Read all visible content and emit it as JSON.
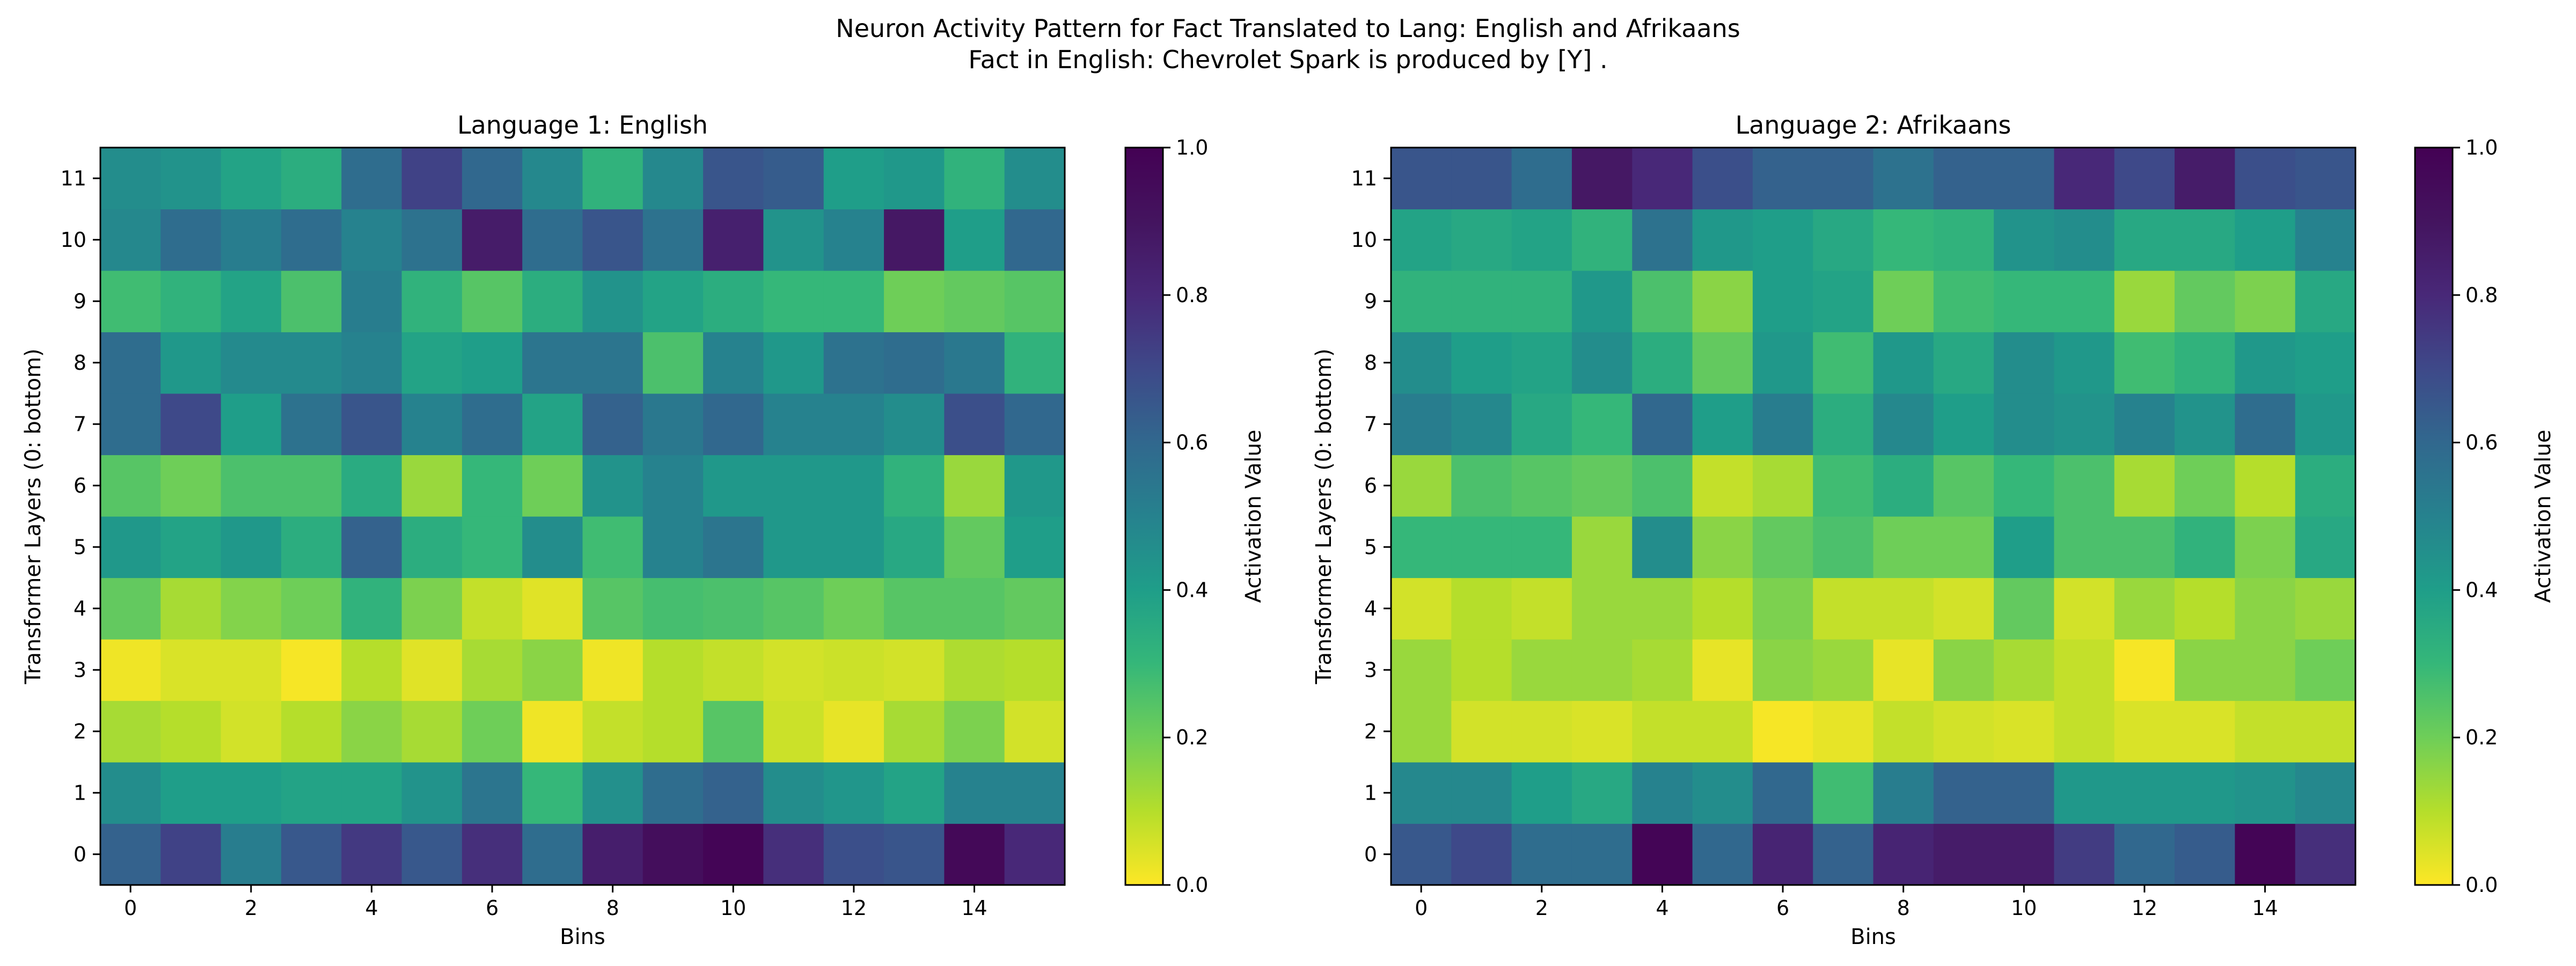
{
  "figure": {
    "suptitle_line1": "Neuron Activity Pattern for Fact Translated to Lang: English and Afrikaans",
    "suptitle_line2": "Fact in English: Chevrolet Spark is produced by [Y] ."
  },
  "chart_data": [
    {
      "type": "heatmap",
      "title": "Language 1: English",
      "xlabel": "Bins",
      "ylabel": "Transformer Layers (0: bottom)",
      "x_ticks": [
        "0",
        "2",
        "4",
        "6",
        "8",
        "10",
        "12",
        "14"
      ],
      "y_ticks": [
        "0",
        "1",
        "2",
        "3",
        "4",
        "5",
        "6",
        "7",
        "8",
        "9",
        "10",
        "11"
      ],
      "colorbar": {
        "label": "Activation Value",
        "min": 0.0,
        "max": 1.0,
        "ticks": [
          "0.0",
          "0.2",
          "0.4",
          "0.6",
          "0.8",
          "1.0"
        ],
        "colormap": "viridis_r"
      },
      "n_bins": 16,
      "n_layers": 12,
      "values_by_layer": [
        [
          0.62,
          0.72,
          0.52,
          0.65,
          0.75,
          0.65,
          0.78,
          0.58,
          0.85,
          0.93,
          0.98,
          0.78,
          0.68,
          0.66,
          0.96,
          0.8
        ],
        [
          0.46,
          0.4,
          0.4,
          0.38,
          0.38,
          0.44,
          0.55,
          0.3,
          0.45,
          0.58,
          0.62,
          0.46,
          0.43,
          0.38,
          0.5,
          0.5
        ],
        [
          0.12,
          0.1,
          0.06,
          0.1,
          0.16,
          0.12,
          0.2,
          0.02,
          0.08,
          0.1,
          0.24,
          0.07,
          0.03,
          0.12,
          0.18,
          0.06
        ],
        [
          0.02,
          0.05,
          0.05,
          0.01,
          0.1,
          0.04,
          0.12,
          0.16,
          0.02,
          0.1,
          0.08,
          0.06,
          0.07,
          0.06,
          0.11,
          0.1
        ],
        [
          0.22,
          0.12,
          0.17,
          0.2,
          0.32,
          0.18,
          0.08,
          0.04,
          0.24,
          0.27,
          0.26,
          0.24,
          0.2,
          0.24,
          0.24,
          0.22
        ],
        [
          0.42,
          0.38,
          0.42,
          0.34,
          0.62,
          0.34,
          0.3,
          0.46,
          0.28,
          0.5,
          0.55,
          0.42,
          0.42,
          0.36,
          0.22,
          0.4
        ],
        [
          0.24,
          0.2,
          0.26,
          0.26,
          0.35,
          0.14,
          0.3,
          0.2,
          0.44,
          0.5,
          0.42,
          0.42,
          0.42,
          0.32,
          0.14,
          0.42
        ],
        [
          0.58,
          0.7,
          0.4,
          0.56,
          0.66,
          0.5,
          0.58,
          0.38,
          0.62,
          0.54,
          0.6,
          0.5,
          0.5,
          0.46,
          0.68,
          0.6
        ],
        [
          0.58,
          0.42,
          0.47,
          0.47,
          0.5,
          0.38,
          0.4,
          0.55,
          0.55,
          0.26,
          0.5,
          0.42,
          0.56,
          0.58,
          0.54,
          0.32
        ],
        [
          0.28,
          0.32,
          0.38,
          0.26,
          0.52,
          0.32,
          0.24,
          0.34,
          0.44,
          0.38,
          0.34,
          0.3,
          0.3,
          0.2,
          0.22,
          0.24
        ],
        [
          0.48,
          0.58,
          0.52,
          0.58,
          0.5,
          0.56,
          0.86,
          0.58,
          0.66,
          0.56,
          0.84,
          0.44,
          0.5,
          0.88,
          0.4,
          0.6
        ],
        [
          0.46,
          0.44,
          0.38,
          0.34,
          0.58,
          0.72,
          0.6,
          0.48,
          0.32,
          0.48,
          0.66,
          0.64,
          0.4,
          0.42,
          0.32,
          0.46
        ]
      ]
    },
    {
      "type": "heatmap",
      "title": "Language 2: Afrikaans",
      "xlabel": "Bins",
      "ylabel": "Transformer Layers (0: bottom)",
      "x_ticks": [
        "0",
        "2",
        "4",
        "6",
        "8",
        "10",
        "12",
        "14"
      ],
      "y_ticks": [
        "0",
        "1",
        "2",
        "3",
        "4",
        "5",
        "6",
        "7",
        "8",
        "9",
        "10",
        "11"
      ],
      "colorbar": {
        "label": "Activation Value",
        "min": 0.0,
        "max": 1.0,
        "ticks": [
          "0.0",
          "0.2",
          "0.4",
          "0.6",
          "0.8",
          "1.0"
        ],
        "colormap": "viridis_r"
      },
      "n_bins": 16,
      "n_layers": 12,
      "values_by_layer": [
        [
          0.65,
          0.7,
          0.58,
          0.58,
          0.98,
          0.6,
          0.82,
          0.62,
          0.82,
          0.86,
          0.86,
          0.74,
          0.6,
          0.64,
          0.98,
          0.78
        ],
        [
          0.48,
          0.48,
          0.4,
          0.36,
          0.5,
          0.46,
          0.6,
          0.28,
          0.52,
          0.62,
          0.62,
          0.42,
          0.42,
          0.42,
          0.44,
          0.48
        ],
        [
          0.14,
          0.06,
          0.06,
          0.05,
          0.08,
          0.08,
          0.01,
          0.03,
          0.08,
          0.06,
          0.05,
          0.08,
          0.05,
          0.05,
          0.08,
          0.08
        ],
        [
          0.14,
          0.1,
          0.14,
          0.14,
          0.12,
          0.03,
          0.16,
          0.14,
          0.03,
          0.16,
          0.12,
          0.08,
          0.01,
          0.16,
          0.16,
          0.2
        ],
        [
          0.06,
          0.1,
          0.08,
          0.14,
          0.14,
          0.1,
          0.18,
          0.08,
          0.08,
          0.06,
          0.22,
          0.06,
          0.14,
          0.1,
          0.16,
          0.14
        ],
        [
          0.3,
          0.3,
          0.3,
          0.14,
          0.46,
          0.16,
          0.22,
          0.26,
          0.2,
          0.2,
          0.4,
          0.26,
          0.26,
          0.32,
          0.18,
          0.36
        ],
        [
          0.14,
          0.26,
          0.24,
          0.22,
          0.26,
          0.08,
          0.12,
          0.28,
          0.34,
          0.24,
          0.3,
          0.26,
          0.12,
          0.2,
          0.1,
          0.34
        ],
        [
          0.52,
          0.48,
          0.36,
          0.3,
          0.6,
          0.4,
          0.52,
          0.34,
          0.48,
          0.4,
          0.46,
          0.44,
          0.5,
          0.44,
          0.58,
          0.42
        ],
        [
          0.46,
          0.4,
          0.38,
          0.46,
          0.34,
          0.22,
          0.42,
          0.28,
          0.42,
          0.36,
          0.46,
          0.42,
          0.28,
          0.32,
          0.42,
          0.4
        ],
        [
          0.32,
          0.32,
          0.32,
          0.42,
          0.26,
          0.16,
          0.4,
          0.38,
          0.2,
          0.28,
          0.3,
          0.3,
          0.14,
          0.22,
          0.18,
          0.36
        ],
        [
          0.38,
          0.36,
          0.38,
          0.32,
          0.56,
          0.42,
          0.4,
          0.36,
          0.3,
          0.32,
          0.44,
          0.46,
          0.36,
          0.36,
          0.4,
          0.5
        ],
        [
          0.66,
          0.66,
          0.58,
          0.88,
          0.8,
          0.68,
          0.62,
          0.62,
          0.56,
          0.62,
          0.62,
          0.8,
          0.7,
          0.86,
          0.68,
          0.66
        ]
      ]
    }
  ]
}
